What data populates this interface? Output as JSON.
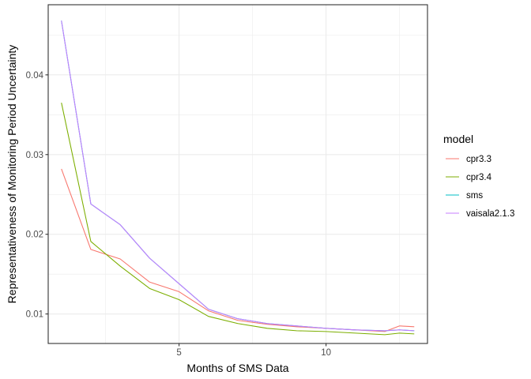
{
  "chart_data": {
    "type": "line",
    "xlabel": "Months of SMS Data",
    "ylabel": "Representativeness of Monitoring Period Uncertainty",
    "xlim": [
      0.55,
      13.45
    ],
    "ylim": [
      0.0063,
      0.0488
    ],
    "x_ticks": [
      5,
      10
    ],
    "x_tick_labels": [
      "5",
      "10"
    ],
    "y_ticks": [
      0.01,
      0.02,
      0.03,
      0.04
    ],
    "y_tick_labels": [
      "0.01",
      "0.02",
      "0.03",
      "0.04"
    ],
    "grid": true,
    "legend_title": "model",
    "legend_position": "right",
    "x": [
      1,
      2,
      3,
      4,
      5,
      6,
      7,
      8,
      9,
      10,
      11,
      12,
      12.5,
      13
    ],
    "series": [
      {
        "name": "cpr3.3",
        "color": "#F8766D",
        "values": [
          0.0282,
          0.0181,
          0.0169,
          0.014,
          0.0128,
          0.0104,
          0.0092,
          0.0087,
          0.0084,
          0.0082,
          0.008,
          0.0078,
          0.0085,
          0.0084
        ]
      },
      {
        "name": "cpr3.4",
        "color": "#7CAE00",
        "values": [
          0.0365,
          0.0191,
          0.016,
          0.0132,
          0.0118,
          0.0097,
          0.0088,
          0.0082,
          0.0079,
          0.0078,
          0.0076,
          0.0074,
          0.0076,
          0.0075
        ]
      },
      {
        "name": "sms",
        "color": "#00BFC4",
        "values": [
          0.0468,
          0.0238,
          0.0212,
          0.017,
          0.0138,
          0.0106,
          0.0094,
          0.0088,
          0.0085,
          0.0082,
          0.008,
          0.0079,
          0.008,
          0.0079
        ]
      },
      {
        "name": "vaisala2.1.3",
        "color": "#C77CFF",
        "values": [
          0.0468,
          0.0238,
          0.0212,
          0.017,
          0.0138,
          0.0106,
          0.0094,
          0.0088,
          0.0085,
          0.0082,
          0.008,
          0.0079,
          0.008,
          0.0079
        ]
      }
    ]
  }
}
